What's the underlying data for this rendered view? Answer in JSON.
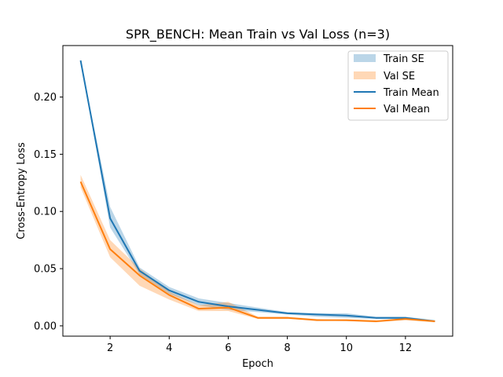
{
  "chart_data": {
    "type": "line",
    "title": "SPR_BENCH: Mean Train vs Val Loss (n=3)",
    "xlabel": "Epoch",
    "ylabel": "Cross-Entropy Loss",
    "xlim": [
      0.4,
      13.6
    ],
    "ylim": [
      -0.009,
      0.245
    ],
    "xticks": [
      2,
      4,
      6,
      8,
      10,
      12
    ],
    "yticks": [
      0.0,
      0.05,
      0.1,
      0.15,
      0.2
    ],
    "ytick_labels": [
      "0.00",
      "0.05",
      "0.10",
      "0.15",
      "0.20"
    ],
    "grid": false,
    "legend_position": "top-right",
    "x": [
      1,
      2,
      3,
      4,
      5,
      6,
      7,
      8,
      9,
      10,
      11,
      12,
      13
    ],
    "series": [
      {
        "name": "Train Mean",
        "band_name": "Train SE",
        "color": "#1f77b4",
        "band_color": "#1f77b4",
        "values": [
          0.232,
          0.094,
          0.048,
          0.031,
          0.021,
          0.017,
          0.014,
          0.011,
          0.01,
          0.009,
          0.007,
          0.007,
          0.004
        ],
        "lower": [
          0.232,
          0.086,
          0.045,
          0.028,
          0.018,
          0.014,
          0.012,
          0.01,
          0.008,
          0.007,
          0.006,
          0.006,
          0.004
        ],
        "upper": [
          0.232,
          0.104,
          0.051,
          0.034,
          0.024,
          0.02,
          0.016,
          0.012,
          0.011,
          0.011,
          0.008,
          0.008,
          0.005
        ]
      },
      {
        "name": "Val Mean",
        "band_name": "Val SE",
        "color": "#ff7f0e",
        "band_color": "#ff7f0e",
        "values": [
          0.126,
          0.067,
          0.044,
          0.027,
          0.015,
          0.016,
          0.007,
          0.007,
          0.005,
          0.005,
          0.004,
          0.006,
          0.004
        ],
        "lower": [
          0.121,
          0.06,
          0.035,
          0.023,
          0.013,
          0.013,
          0.006,
          0.006,
          0.005,
          0.004,
          0.003,
          0.005,
          0.003
        ],
        "upper": [
          0.132,
          0.075,
          0.05,
          0.03,
          0.018,
          0.021,
          0.008,
          0.008,
          0.006,
          0.005,
          0.004,
          0.006,
          0.004
        ]
      }
    ],
    "legend": [
      "Train SE",
      "Val SE",
      "Train Mean",
      "Val Mean"
    ]
  }
}
